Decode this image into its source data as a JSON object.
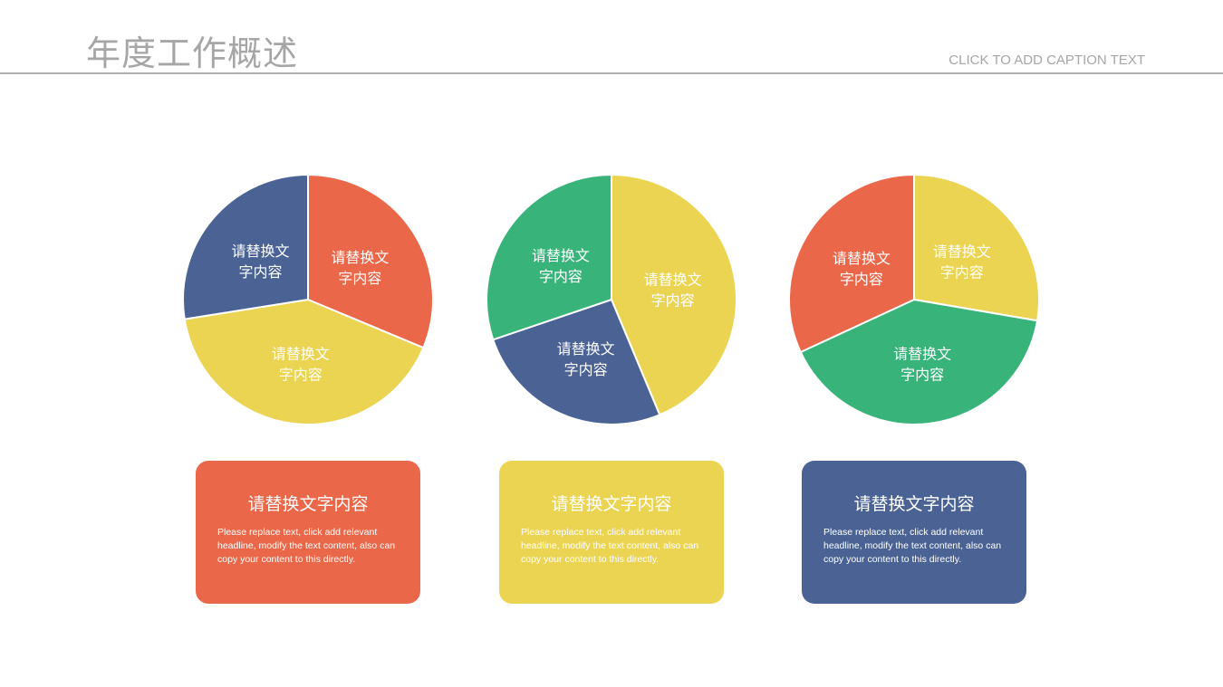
{
  "header": {
    "title": "年度工作概述",
    "caption": "CLICK TO ADD CAPTION TEXT"
  },
  "colors": {
    "red": "#EB6749",
    "yellow": "#ECD453",
    "blue": "#4A6394",
    "green": "#38B47B"
  },
  "chart_data": [
    {
      "type": "pie",
      "slices": [
        {
          "label": "请替换文字内容",
          "line1": "请替换文",
          "line2": "字内容",
          "value": 31.3,
          "color": "#EB6749"
        },
        {
          "label": "请替换文字内容",
          "line1": "请替换文",
          "line2": "字内容",
          "value": 41.2,
          "color": "#ECD453"
        },
        {
          "label": "请替换文字内容",
          "line1": "请替换文",
          "line2": "字内容",
          "value": 27.5,
          "color": "#4A6394"
        }
      ]
    },
    {
      "type": "pie",
      "slices": [
        {
          "label": "请替换文字内容",
          "line1": "请替换文",
          "line2": "字内容",
          "value": 43.7,
          "color": "#ECD453"
        },
        {
          "label": "请替换文字内容",
          "line1": "请替换文",
          "line2": "字内容",
          "value": 26.1,
          "color": "#4A6394"
        },
        {
          "label": "请替换文字内容",
          "line1": "请替换文",
          "line2": "字内容",
          "value": 30.2,
          "color": "#38B47B"
        }
      ]
    },
    {
      "type": "pie",
      "slices": [
        {
          "label": "请替换文字内容",
          "line1": "请替换文",
          "line2": "字内容",
          "value": 27.7,
          "color": "#ECD453"
        },
        {
          "label": "请替换文字内容",
          "line1": "请替换文",
          "line2": "字内容",
          "value": 40.4,
          "color": "#38B47B"
        },
        {
          "label": "请替换文字内容",
          "line1": "请替换文",
          "line2": "字内容",
          "value": 31.9,
          "color": "#EB6749"
        }
      ]
    }
  ],
  "cards": [
    {
      "title": "请替换文字内容",
      "body": "Please replace text, click add relevant headline, modify the text content, also can copy your content to this directly.",
      "color": "#EB6749"
    },
    {
      "title": "请替换文字内容",
      "body": "Please replace text, click add relevant headline, modify the text content, also can copy your content to this directly.",
      "color": "#ECD453"
    },
    {
      "title": "请替换文字内容",
      "body": "Please replace text, click add relevant headline, modify the text content, also can copy your content to this directly.",
      "color": "#4A6394"
    }
  ]
}
